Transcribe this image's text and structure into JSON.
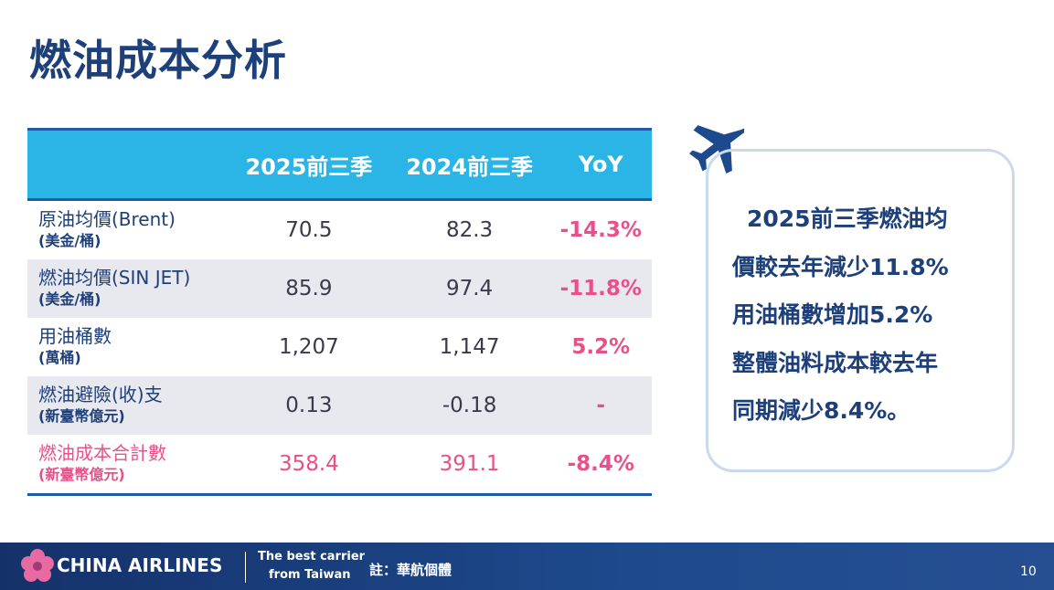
{
  "header": {
    "title": "燃油成本分析"
  },
  "table": {
    "columns": [
      "2025前三季",
      "2024前三季",
      "YoY"
    ],
    "rows": [
      {
        "label": "原油均價(Brent)",
        "unit": "(美金/桶)",
        "cells": [
          "70.5",
          "82.3",
          "-14.3%"
        ]
      },
      {
        "label": "燃油均價(SIN JET)",
        "unit": "(美金/桶)",
        "cells": [
          "85.9",
          "97.4",
          "-11.8%"
        ]
      },
      {
        "label": "用油桶數",
        "unit": "(萬桶)",
        "cells": [
          "1,207",
          "1,147",
          "5.2%"
        ]
      },
      {
        "label": "燃油避險(收)支",
        "unit": "(新臺幣億元)",
        "cells": [
          "0.13",
          "-0.18",
          "-"
        ]
      },
      {
        "label": "燃油成本合計數",
        "unit": "(新臺幣億元)",
        "cells": [
          "358.4",
          "391.1",
          "-8.4%"
        ]
      }
    ]
  },
  "summary": {
    "lines": [
      "2025前三季燃油均",
      "價較去年減少11.8%",
      "用油桶數增加5.2%",
      "整體油料成本較去年",
      "同期減少8.4%。"
    ]
  },
  "footer": {
    "brand": "CHINA AIRLINES",
    "tagline": [
      "The best carrier",
      "from Taiwan"
    ],
    "note": "註：華航個體",
    "page": "10"
  }
}
